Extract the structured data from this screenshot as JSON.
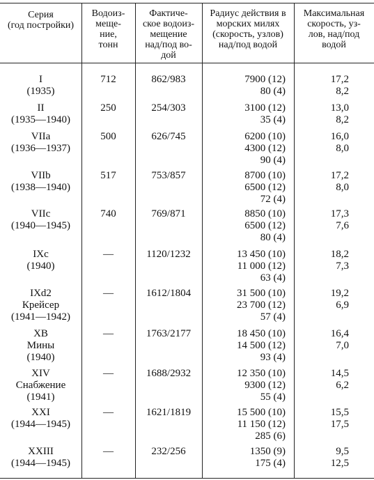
{
  "table": {
    "header": [
      [
        "Серия",
        "(год постройки)"
      ],
      [
        "Водоиз-",
        "меще-",
        "ние,",
        "тонн"
      ],
      [
        "Фактиче-",
        "ское водоиз-",
        "мещение",
        "над/под во-",
        "дой"
      ],
      [
        "Радиус действия в",
        "морских милях",
        "(скорость, узлов)",
        "над/под водой"
      ],
      [
        "Максимальная",
        "скорость, уз-",
        "лов, над/под",
        "водой"
      ]
    ],
    "rows": [
      [
        [
          "I",
          "(1935)"
        ],
        [
          "712"
        ],
        [
          "862/983"
        ],
        [
          "7900 (12)",
          "80 (4)"
        ],
        [
          "17,2",
          "8,2"
        ]
      ],
      [
        [
          "II",
          "(1935—1940)"
        ],
        [
          "250"
        ],
        [
          "254/303"
        ],
        [
          "3100 (12)",
          "35 (4)"
        ],
        [
          "13,0",
          "8,2"
        ]
      ],
      [
        [
          "VIIa",
          "(1936—1937)"
        ],
        [
          "500"
        ],
        [
          "626/745"
        ],
        [
          "6200 (10)",
          "4300 (12)",
          "90 (4)"
        ],
        [
          "16,0",
          "8,0"
        ]
      ],
      [
        [
          "VIIb",
          "(1938—1940)"
        ],
        [
          "517"
        ],
        [
          "753/857"
        ],
        [
          "8700 (10)",
          "6500 (12)",
          "72 (4)"
        ],
        [
          "17,2",
          "8,0"
        ]
      ],
      [
        [
          "VIIc",
          "(1940—1945)"
        ],
        [
          "740"
        ],
        [
          "769/871"
        ],
        [
          "8850 (10)",
          "6500 (12)",
          "80 (4)"
        ],
        [
          "17,3",
          "7,6"
        ]
      ],
      [
        [
          "IXc",
          "(1940)"
        ],
        [
          "—"
        ],
        [
          "1120/1232"
        ],
        [
          "13 450 (10)",
          "11 000 (12)",
          "63 (4)"
        ],
        [
          "18,2",
          "7,3"
        ]
      ],
      [
        [
          "IXd2",
          "Крейсер",
          "(1941—1942)"
        ],
        [
          "—"
        ],
        [
          "1612/1804"
        ],
        [
          "31 500 (10)",
          "23 700 (12)",
          "57 (4)"
        ],
        [
          "19,2",
          "6,9"
        ]
      ],
      [
        [
          "XB",
          "Мины",
          "(1940)"
        ],
        [
          "—"
        ],
        [
          "1763/2177"
        ],
        [
          "18 450 (10)",
          "14 500 (12)",
          "93 (4)"
        ],
        [
          "16,4",
          "7,0"
        ]
      ],
      [
        [
          "XIV",
          "Снабжение",
          "(1941)"
        ],
        [
          "—"
        ],
        [
          "1688/2932"
        ],
        [
          "12 350 (10)",
          "9300 (12)",
          "55 (4)"
        ],
        [
          "14,5",
          "6,2"
        ]
      ],
      [
        [
          "XXI",
          "(1944—1945)"
        ],
        [
          "—"
        ],
        [
          "1621/1819"
        ],
        [
          "15 500 (10)",
          "11 150 (12)",
          "285 (6)"
        ],
        [
          "15,5",
          "17,5"
        ]
      ],
      [
        [
          "XXIII",
          "(1944—1945)"
        ],
        [
          "—"
        ],
        [
          "232/256"
        ],
        [
          "1350 (9)",
          "175 (4)"
        ],
        [
          "9,5",
          "12,5"
        ]
      ]
    ]
  }
}
